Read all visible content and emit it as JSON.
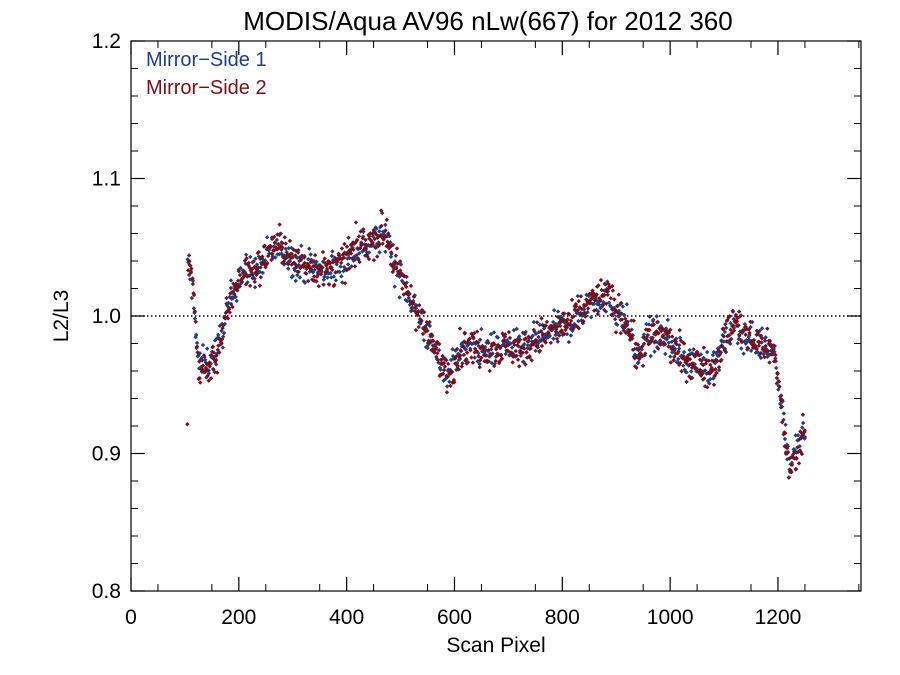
{
  "chart_data": {
    "type": "scatter",
    "title": "MODIS/Aqua AV96 nLw(667) for 2012 360",
    "xlabel": "Scan Pixel",
    "ylabel": "L2/L3",
    "xlim": [
      0,
      1354
    ],
    "ylim": [
      0.8,
      1.2
    ],
    "x_ticks": [
      0,
      200,
      400,
      600,
      800,
      1000,
      1200
    ],
    "x_tick_labels": [
      "0",
      "200",
      "400",
      "600",
      "800",
      "1000",
      "1200"
    ],
    "y_ticks": [
      0.8,
      0.9,
      1.0,
      1.1,
      1.2
    ],
    "y_tick_labels": [
      "0.8",
      "0.9",
      "1.0",
      "1.1",
      "1.2"
    ],
    "reference_line": {
      "y": 1.0,
      "style": "dotted"
    },
    "legend": {
      "position": "top-left",
      "entries": [
        "Mirror−Side 1",
        "Mirror−Side 2"
      ]
    },
    "grid": false,
    "series": [
      {
        "name": "Mirror−Side 1",
        "color": "#1f3f80",
        "trend": [
          [
            105,
            1.035
          ],
          [
            115,
            1.02
          ],
          [
            125,
            0.965
          ],
          [
            140,
            0.965
          ],
          [
            160,
            0.975
          ],
          [
            180,
            1.005
          ],
          [
            200,
            1.03
          ],
          [
            220,
            1.032
          ],
          [
            240,
            1.035
          ],
          [
            260,
            1.048
          ],
          [
            280,
            1.05
          ],
          [
            300,
            1.04
          ],
          [
            320,
            1.038
          ],
          [
            340,
            1.035
          ],
          [
            360,
            1.032
          ],
          [
            380,
            1.035
          ],
          [
            400,
            1.04
          ],
          [
            420,
            1.05
          ],
          [
            440,
            1.052
          ],
          [
            460,
            1.058
          ],
          [
            475,
            1.06
          ],
          [
            490,
            1.035
          ],
          [
            510,
            1.02
          ],
          [
            530,
            1.005
          ],
          [
            550,
            0.985
          ],
          [
            570,
            0.97
          ],
          [
            590,
            0.96
          ],
          [
            610,
            0.975
          ],
          [
            640,
            0.978
          ],
          [
            670,
            0.975
          ],
          [
            700,
            0.978
          ],
          [
            730,
            0.975
          ],
          [
            760,
            0.985
          ],
          [
            790,
            0.99
          ],
          [
            820,
            0.995
          ],
          [
            850,
            1.01
          ],
          [
            880,
            1.015
          ],
          [
            900,
            1.005
          ],
          [
            920,
            0.995
          ],
          [
            940,
            0.97
          ],
          [
            960,
            0.985
          ],
          [
            990,
            0.985
          ],
          [
            1020,
            0.97
          ],
          [
            1050,
            0.965
          ],
          [
            1080,
            0.962
          ],
          [
            1100,
            0.98
          ],
          [
            1120,
            0.995
          ],
          [
            1140,
            0.985
          ],
          [
            1160,
            0.98
          ],
          [
            1180,
            0.98
          ],
          [
            1195,
            0.97
          ],
          [
            1210,
            0.93
          ],
          [
            1220,
            0.89
          ],
          [
            1235,
            0.905
          ],
          [
            1250,
            0.915
          ]
        ],
        "spread": 0.012,
        "points_per_unit": 0.8
      },
      {
        "name": "Mirror−Side 2",
        "color": "#7a0f1a",
        "trend": [
          [
            105,
            1.04
          ],
          [
            115,
            1.025
          ],
          [
            125,
            0.962
          ],
          [
            140,
            0.962
          ],
          [
            160,
            0.972
          ],
          [
            180,
            1.005
          ],
          [
            200,
            1.03
          ],
          [
            220,
            1.032
          ],
          [
            240,
            1.036
          ],
          [
            260,
            1.05
          ],
          [
            280,
            1.052
          ],
          [
            300,
            1.04
          ],
          [
            320,
            1.038
          ],
          [
            340,
            1.036
          ],
          [
            360,
            1.032
          ],
          [
            380,
            1.036
          ],
          [
            400,
            1.042
          ],
          [
            420,
            1.05
          ],
          [
            440,
            1.054
          ],
          [
            460,
            1.058
          ],
          [
            475,
            1.06
          ],
          [
            490,
            1.035
          ],
          [
            510,
            1.02
          ],
          [
            530,
            1.005
          ],
          [
            550,
            0.985
          ],
          [
            570,
            0.97
          ],
          [
            590,
            0.958
          ],
          [
            610,
            0.975
          ],
          [
            640,
            0.978
          ],
          [
            670,
            0.975
          ],
          [
            700,
            0.978
          ],
          [
            730,
            0.975
          ],
          [
            760,
            0.985
          ],
          [
            790,
            0.99
          ],
          [
            820,
            0.996
          ],
          [
            850,
            1.01
          ],
          [
            880,
            1.016
          ],
          [
            900,
            1.005
          ],
          [
            920,
            0.995
          ],
          [
            940,
            0.968
          ],
          [
            960,
            0.985
          ],
          [
            990,
            0.985
          ],
          [
            1020,
            0.97
          ],
          [
            1050,
            0.965
          ],
          [
            1080,
            0.962
          ],
          [
            1100,
            0.982
          ],
          [
            1120,
            0.997
          ],
          [
            1140,
            0.985
          ],
          [
            1160,
            0.98
          ],
          [
            1180,
            0.98
          ],
          [
            1195,
            0.97
          ],
          [
            1210,
            0.925
          ],
          [
            1220,
            0.885
          ],
          [
            1235,
            0.9
          ],
          [
            1250,
            0.918
          ]
        ],
        "spread": 0.013,
        "points_per_unit": 0.8
      }
    ]
  }
}
